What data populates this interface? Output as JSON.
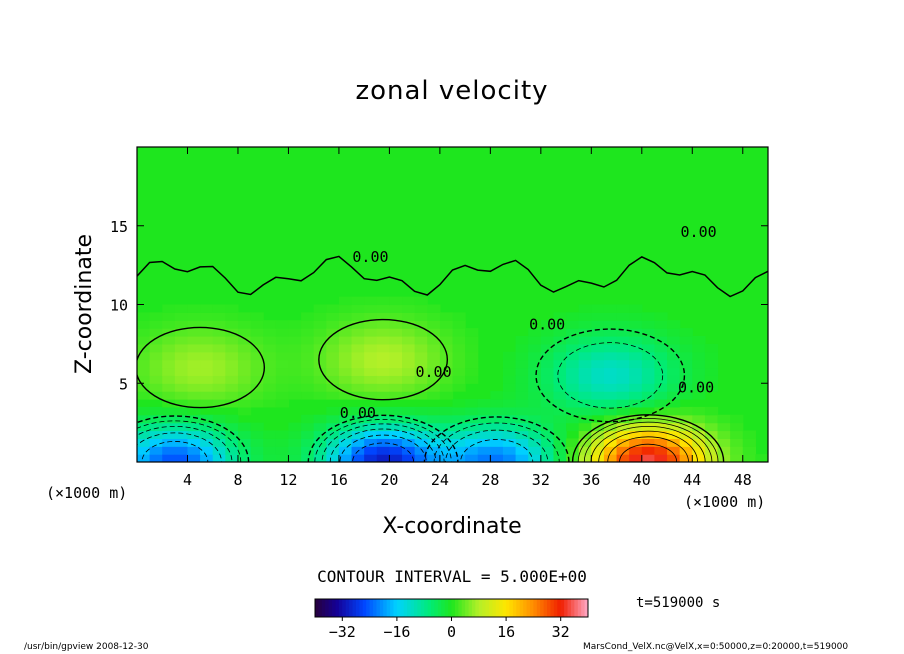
{
  "chart_data": {
    "type": "heatmap",
    "title": "zonal velocity",
    "xlabel": "X-coordinate",
    "ylabel": "Z-coordinate",
    "x_unit": "(×1000 m)",
    "xlim": [
      0,
      50
    ],
    "ylim": [
      0,
      20
    ],
    "x_ticks": [
      4,
      8,
      12,
      16,
      20,
      24,
      28,
      32,
      36,
      40,
      44,
      48
    ],
    "y_ticks": [
      5,
      10,
      15
    ],
    "contour_interval": "CONTOUR INTERVAL = 5.000E+00",
    "contour_labels": [
      {
        "x": 17.5,
        "y": 2.8,
        "text": "0.00"
      },
      {
        "x": 23.5,
        "y": 5.4,
        "text": "0.00"
      },
      {
        "x": 18.5,
        "y": 12.7,
        "text": "0.00"
      },
      {
        "x": 32.5,
        "y": 8.4,
        "text": "0.00"
      },
      {
        "x": 44.5,
        "y": 14.3,
        "text": "0.00"
      },
      {
        "x": 44.3,
        "y": 4.4,
        "text": "0.00"
      }
    ],
    "colorbar": {
      "min": -40,
      "max": 40,
      "ticks": [
        -32,
        -16,
        0,
        16,
        32
      ],
      "tick_labels": [
        "−32",
        "−16",
        "0",
        "16",
        "32"
      ]
    },
    "time_label": "t=519000 s",
    "features": [
      {
        "x": 3,
        "y": 0,
        "value": -25
      },
      {
        "x": 19.5,
        "y": 0,
        "value": -30
      },
      {
        "x": 28.5,
        "y": 0,
        "value": -22
      },
      {
        "x": 40.5,
        "y": 0,
        "value": 35
      },
      {
        "x": 37.5,
        "y": 5.5,
        "value": -12
      },
      {
        "x": 19.5,
        "y": 6.5,
        "value": 8
      },
      {
        "x": 5,
        "y": 6,
        "value": 7
      }
    ]
  },
  "footer": {
    "left": "/usr/bin/gpview   2008-12-30",
    "right": "MarsCond_VelX.nc@VelX,x=0:50000,z=0:20000,t=519000"
  }
}
